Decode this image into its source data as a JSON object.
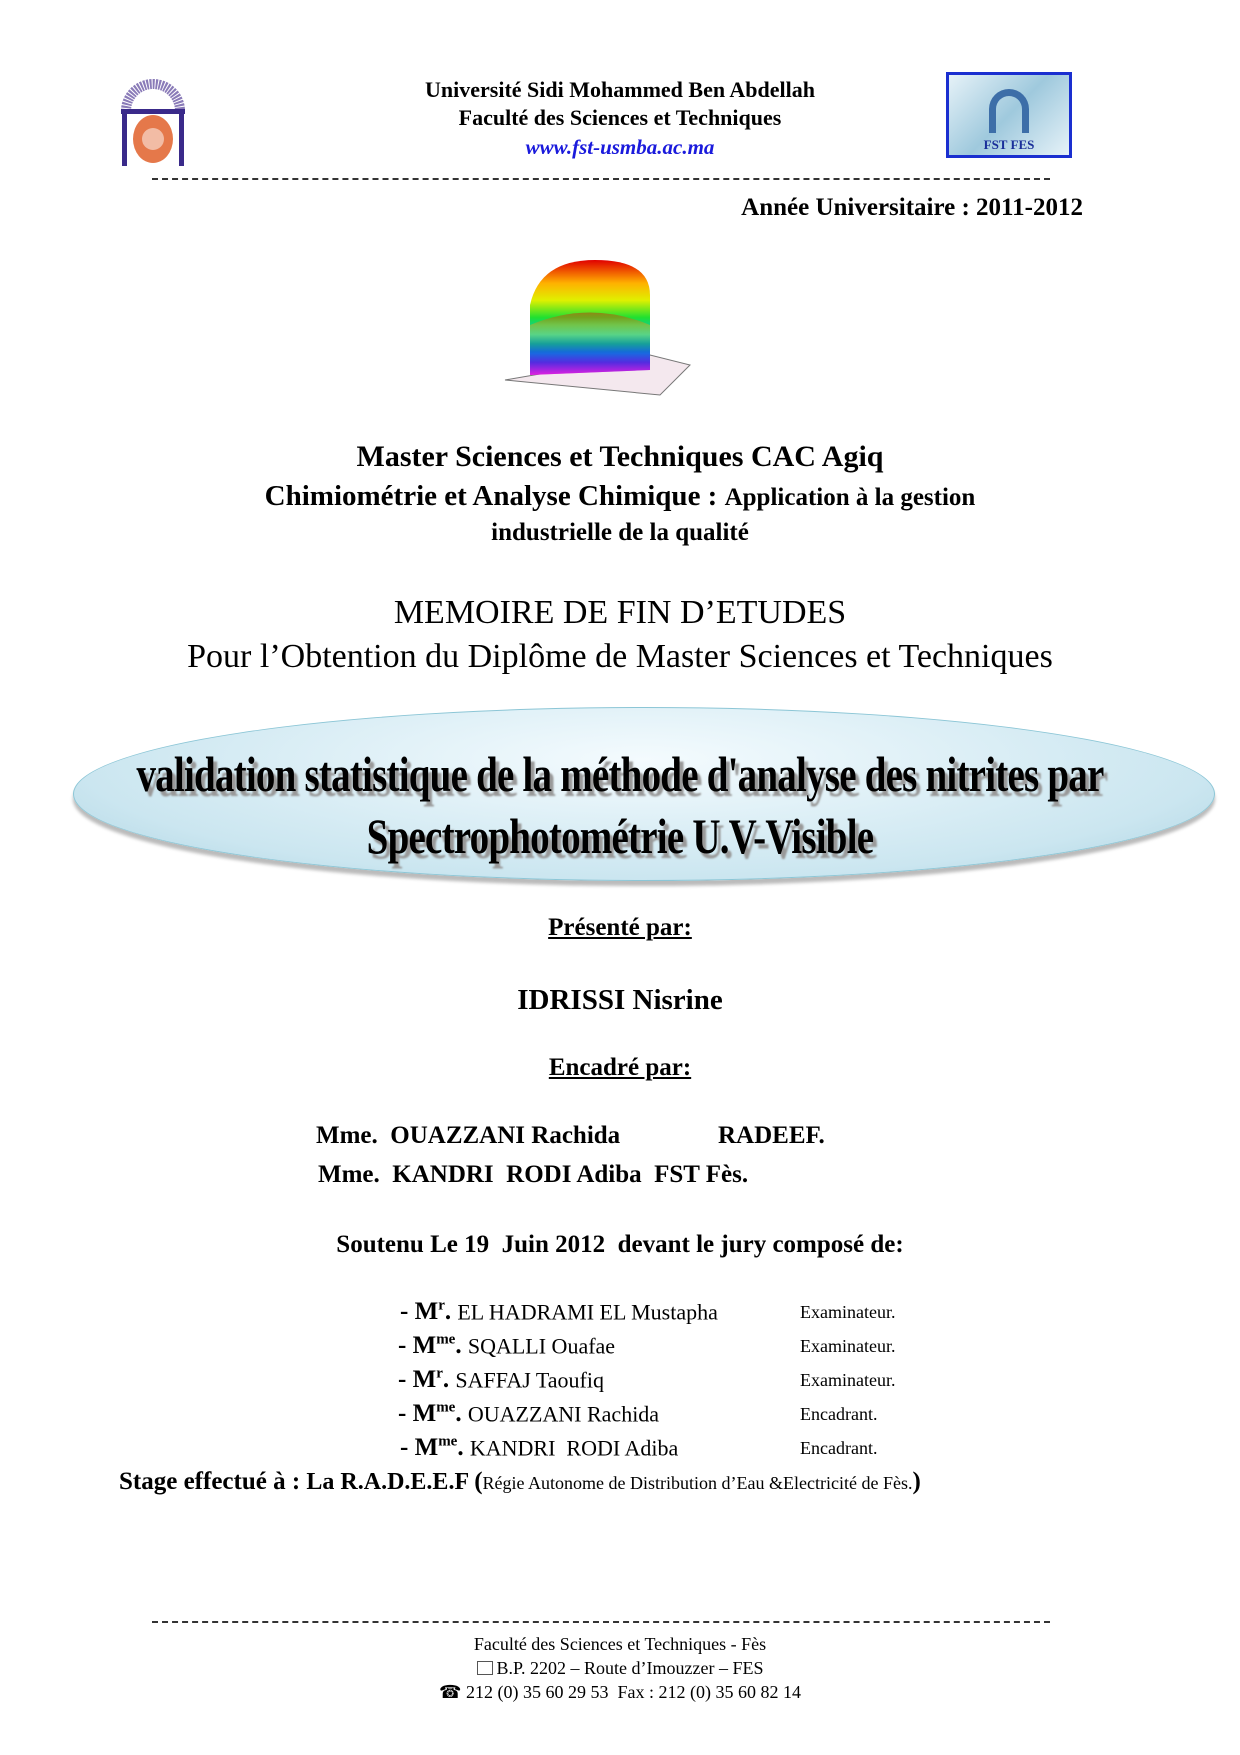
{
  "header": {
    "university": "Université Sidi Mohammed Ben Abdellah",
    "faculty": "Faculté des Sciences et Techniques",
    "website": "www.fst-usmba.ac.ma",
    "logo_right_text": "FST FES",
    "year": "Année Universitaire : 2011-2012"
  },
  "program": {
    "line1": "Master Sciences et Techniques CAC Agiq",
    "line2_bold": "Chimiométrie et Analyse Chimique : ",
    "line2_rest": "Application à la gestion",
    "line3": "industrielle de la qualité"
  },
  "memoire": {
    "line1": "MEMOIRE DE FIN D’ETUDES",
    "line2": "Pour l’Obtention du Diplôme de Master Sciences et Techniques"
  },
  "title": {
    "line1": "validation statistique de la méthode d'analyse des nitrites par",
    "line2": "Spectrophotométrie U.V-Visible"
  },
  "presented": {
    "label": "Présenté par:",
    "name": "IDRISSI Nisrine"
  },
  "supervised": {
    "label": "Encadré par:",
    "rows": [
      {
        "name": "Mme.  OUAZZANI Rachida",
        "org": "RADEEF."
      },
      {
        "name": "Mme.  KANDRI  RODI Adiba",
        "org": "FST Fès."
      }
    ]
  },
  "defense": "Soutenu Le 19  Juin 2012  devant le jury composé de:",
  "jury": [
    {
      "title": "M",
      "sup": "r",
      "name": "EL HADRAMI EL Mustapha",
      "role": "Examinateur."
    },
    {
      "title": "M",
      "sup": "me",
      "name": "SQALLI Ouafae",
      "role": "Examinateur."
    },
    {
      "title": "M",
      "sup": "r",
      "name": "SAFFAJ Taoufiq",
      "role": "Examinateur."
    },
    {
      "title": "M",
      "sup": "me",
      "name": "OUAZZANI Rachida",
      "role": "Encadrant."
    },
    {
      "title": "M",
      "sup": "me",
      "name": "KANDRI  RODI Adiba",
      "role": "Encadrant."
    }
  ],
  "internship": {
    "label": "Stage effectué à : ",
    "place": "La R.A.D.E.E.F ",
    "paren_open": "(",
    "detail": "Régie Autonome de Distribution d’Eau &Electricité de Fès.",
    "paren_close": ")"
  },
  "footer": {
    "line1": "Faculté des Sciences et Techniques -  Fès",
    "line2": "B.P. 2202 – Route d’Imouzzer – FES",
    "line3": "212 (0) 35 60 29 53  Fax : 212 (0) 35 60 82 14"
  },
  "colors": {
    "link": "#1a1adc",
    "logo_border": "#1a2fd0",
    "ellipse": "#cde9f2"
  }
}
